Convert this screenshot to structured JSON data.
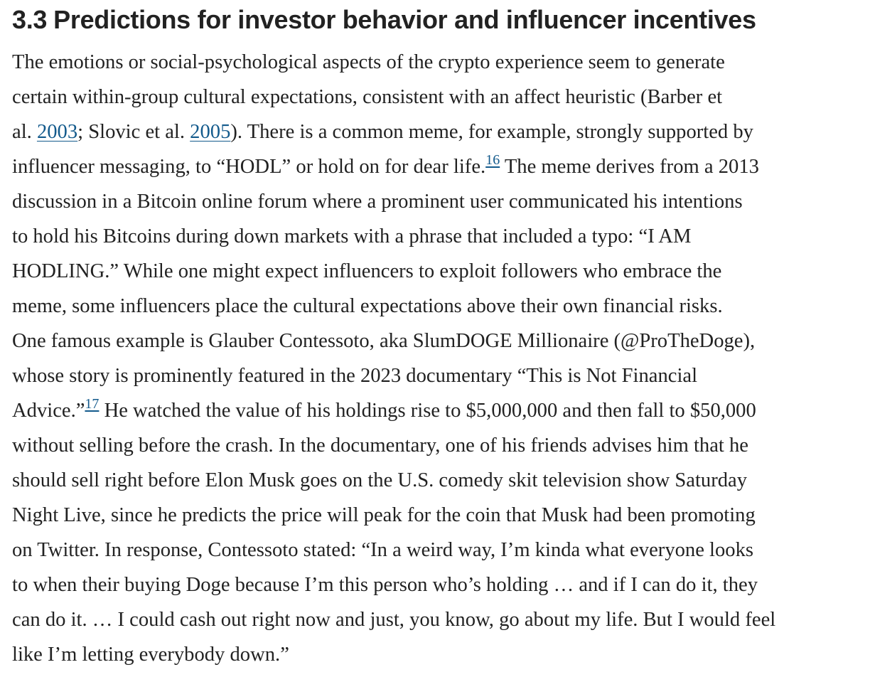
{
  "section": {
    "number": "3.3",
    "title": "Predictions for investor behavior and influencer incentives"
  },
  "paragraph": {
    "l1": "The emotions or social-psychological aspects of the crypto experience seem to generate",
    "l2": "certain within-group cultural expectations, consistent with an affect heuristic (Barber et",
    "l3_a": "al. ",
    "l3_ref1": "2003",
    "l3_b": "; Slovic et al. ",
    "l3_ref2": "2005",
    "l3_c": "). There is a common meme, for example, strongly supported by",
    "l4_a": "influencer messaging, to “HODL” or hold on for dear life.",
    "l4_fn": "16",
    "l4_b": " The meme derives from a 2013",
    "l5": "discussion in a Bitcoin online forum where a prominent user communicated his intentions",
    "l6": "to hold his Bitcoins during down markets with a phrase that included a typo: “I AM",
    "l7": "HODLING.” While one might expect influencers to exploit followers who embrace the",
    "l8": "meme, some influencers place the cultural expectations above their own financial risks.",
    "l9": "One famous example is Glauber Contessoto, aka SlumDOGE Millionaire (@ProTheDoge),",
    "l10": "whose story is prominently featured in the 2023 documentary “This is Not Financial",
    "l11_a": "Advice.”",
    "l11_fn": "17",
    "l11_b": " He watched the value of his holdings rise to $5,000,000 and then fall to $50,000",
    "l12": "without selling before the crash. In the documentary, one of his friends advises him that he",
    "l13": "should sell right before Elon Musk goes on the U.S. comedy skit television show Saturday",
    "l14": "Night Live, since he predicts the price will peak for the coin that Musk had been promoting",
    "l15": "on Twitter. In response, Contessoto stated: “In a weird way, I’m kinda what everyone looks",
    "l16": "to when their buying Doge because I’m this person who’s holding … and if I can do it, they",
    "l17": "can do it. … I could cash out right now and just, you know, go about my life. But I would feel",
    "l18": "like I’m letting everybody down.”"
  },
  "colors": {
    "text": "#222222",
    "link": "#135a8c",
    "background": "#ffffff"
  }
}
